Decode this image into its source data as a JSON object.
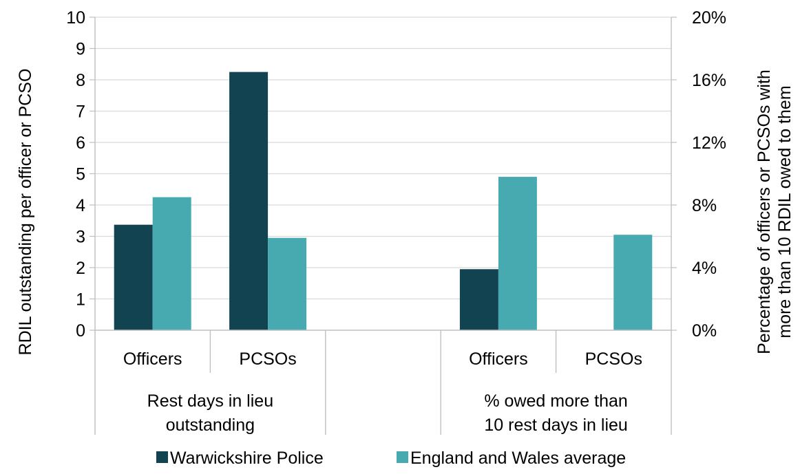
{
  "chart_data": {
    "type": "bar",
    "groups": [
      {
        "label_lines": [
          "Rest days in lieu",
          "outstanding"
        ],
        "axis": "left",
        "categories": [
          "Officers",
          "PCSOs"
        ]
      },
      {
        "label_lines": [
          "% owed more than",
          "10 rest days in lieu"
        ],
        "axis": "right",
        "categories": [
          "Officers",
          "PCSOs"
        ]
      }
    ],
    "series": [
      {
        "name": "Warwickshire Police",
        "color": "#114450",
        "values_left": [
          3.37,
          8.25
        ],
        "values_right": [
          0.039,
          0
        ]
      },
      {
        "name": "England and Wales average",
        "color": "#47aab1",
        "values_left": [
          4.25,
          2.95
        ],
        "values_right": [
          0.098,
          0.061
        ]
      }
    ],
    "left_axis": {
      "label": "RDIL outstanding per officer or PCSO",
      "min": 0,
      "max": 10,
      "step": 1,
      "ticks": [
        "0",
        "1",
        "2",
        "3",
        "4",
        "5",
        "6",
        "7",
        "8",
        "9",
        "10"
      ]
    },
    "right_axis": {
      "label_lines": [
        "Percentage of officers or PCSOs with",
        "more than 10 RDIL owed to them"
      ],
      "min": 0,
      "max": 0.2,
      "step": 0.04,
      "ticks": [
        "0%",
        "4%",
        "8%",
        "12%",
        "16%",
        "20%"
      ]
    },
    "grid": true,
    "legend_position": "bottom"
  }
}
